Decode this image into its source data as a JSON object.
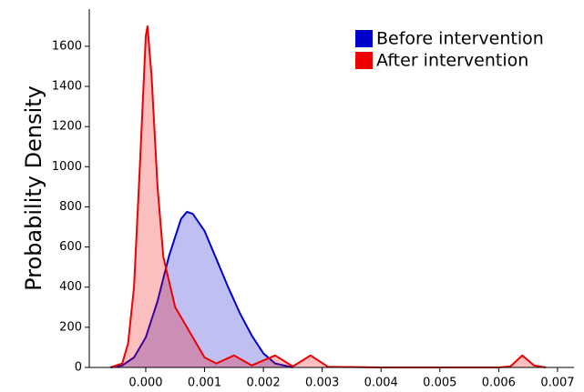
{
  "chart_data": {
    "type": "area",
    "y_label": "Probability Density",
    "xlim": [
      -0.00096,
      0.00728
    ],
    "ylim": [
      0,
      1785
    ],
    "xticks": [
      {
        "value": 0,
        "label": "0.000"
      },
      0.001,
      0.002,
      0.003,
      0.004,
      0.005,
      0.006,
      0.007
    ],
    "yticks": [
      0,
      200,
      400,
      600,
      800,
      1000,
      1200,
      1400,
      1600
    ],
    "legend": "upper right",
    "series": [
      {
        "name": "Before intervention",
        "color": "#0000cc",
        "x": [
          -0.0006,
          -0.0004,
          -0.0002,
          0,
          0.0002,
          0.0004,
          0.0006,
          0.0007,
          0.0008,
          0.001,
          0.0012,
          0.0014,
          0.0016,
          0.0018,
          0.002,
          0.0022,
          0.0025
        ],
        "values": [
          0,
          10,
          50,
          150,
          330,
          560,
          740,
          775,
          765,
          680,
          540,
          400,
          270,
          160,
          70,
          20,
          0
        ]
      },
      {
        "name": "After intervention",
        "color": "#ee0000",
        "x": [
          -0.0006,
          -0.0004,
          -0.0003,
          -0.0002,
          -0.0001,
          0,
          3e-05,
          0.0001,
          0.0002,
          0.0003,
          0.0005,
          0.0007,
          0.001,
          0.0012,
          0.0015,
          0.0018,
          0.0022,
          0.0025,
          0.0028,
          0.0031,
          0.004,
          0.005,
          0.006,
          0.0062,
          0.0064,
          0.0066,
          0.0068
        ],
        "values": [
          0,
          20,
          120,
          400,
          1000,
          1650,
          1700,
          1450,
          900,
          550,
          300,
          200,
          50,
          20,
          60,
          10,
          60,
          5,
          60,
          3,
          0,
          0,
          0,
          5,
          60,
          10,
          0
        ]
      }
    ]
  }
}
